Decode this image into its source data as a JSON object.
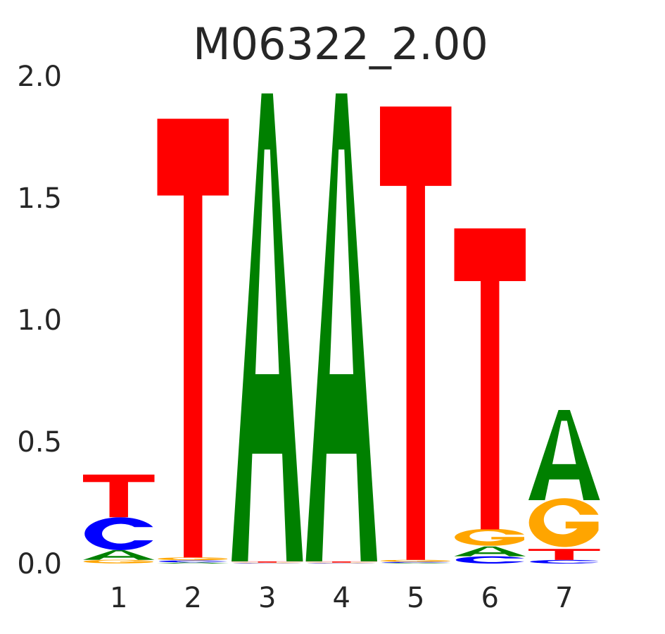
{
  "chart_data": {
    "type": "sequence-logo",
    "title": "M06322_2.00",
    "xlabel": "",
    "ylabel": "",
    "ylim": [
      0,
      2.0
    ],
    "yticks": [
      "0.0",
      "0.5",
      "1.0",
      "1.5",
      "2.0"
    ],
    "grid": false,
    "colors": {
      "A": "#008000",
      "C": "#0000ff",
      "G": "#ffa500",
      "T": "#ff0000"
    },
    "positions": [
      {
        "label": "1",
        "stack": [
          {
            "base": "G",
            "height": 0.015
          },
          {
            "base": "A",
            "height": 0.04
          },
          {
            "base": "C",
            "height": 0.135
          },
          {
            "base": "T",
            "height": 0.175
          }
        ]
      },
      {
        "label": "2",
        "stack": [
          {
            "base": "A",
            "height": 0.005
          },
          {
            "base": "C",
            "height": 0.008
          },
          {
            "base": "G",
            "height": 0.012
          },
          {
            "base": "T",
            "height": 1.8
          }
        ]
      },
      {
        "label": "3",
        "stack": [
          {
            "base": "C",
            "height": 0.002
          },
          {
            "base": "G",
            "height": 0.002
          },
          {
            "base": "T",
            "height": 0.005
          },
          {
            "base": "A",
            "height": 1.92
          }
        ]
      },
      {
        "label": "4",
        "stack": [
          {
            "base": "C",
            "height": 0.002
          },
          {
            "base": "G",
            "height": 0.002
          },
          {
            "base": "T",
            "height": 0.005
          },
          {
            "base": "A",
            "height": 1.92
          }
        ]
      },
      {
        "label": "5",
        "stack": [
          {
            "base": "A",
            "height": 0.003
          },
          {
            "base": "C",
            "height": 0.004
          },
          {
            "base": "G",
            "height": 0.008
          },
          {
            "base": "T",
            "height": 1.86
          }
        ]
      },
      {
        "label": "6",
        "stack": [
          {
            "base": "C",
            "height": 0.03
          },
          {
            "base": "A",
            "height": 0.04
          },
          {
            "base": "G",
            "height": 0.07
          },
          {
            "base": "T",
            "height": 1.235
          }
        ]
      },
      {
        "label": "7",
        "stack": [
          {
            "base": "C",
            "height": 0.015
          },
          {
            "base": "T",
            "height": 0.045
          },
          {
            "base": "G",
            "height": 0.2
          },
          {
            "base": "A",
            "height": 0.37
          }
        ]
      }
    ]
  }
}
